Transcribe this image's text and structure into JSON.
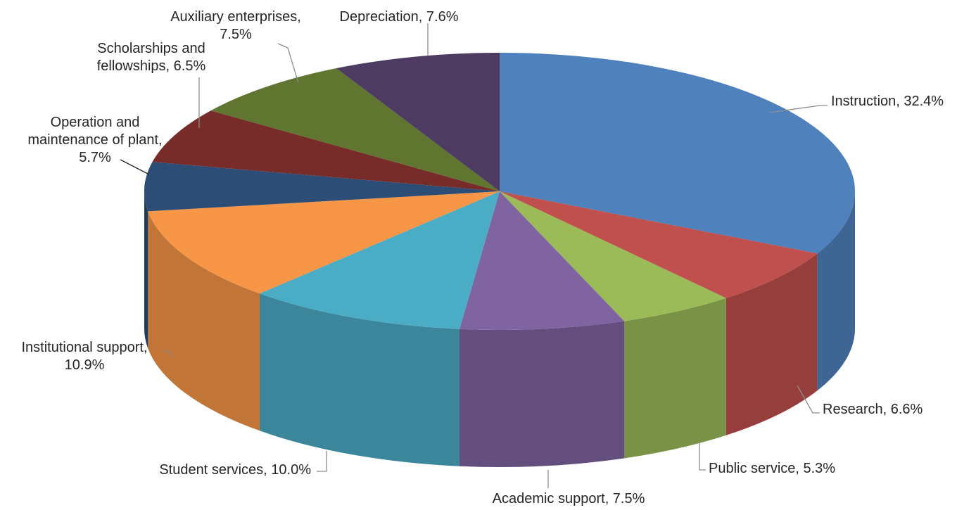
{
  "chart_data": {
    "type": "pie",
    "style": "3d",
    "slices": [
      {
        "label": "Instruction",
        "pct_text": "32.4%",
        "value": 32.4,
        "color": "#4F81BD"
      },
      {
        "label": "Research",
        "pct_text": "6.6%",
        "value": 6.6,
        "color": "#C0504D"
      },
      {
        "label": "Public service",
        "pct_text": "5.3%",
        "value": 5.3,
        "color": "#9BBB59"
      },
      {
        "label": "Academic support",
        "pct_text": "7.5%",
        "value": 7.5,
        "color": "#8064A2"
      },
      {
        "label": "Student services",
        "pct_text": "10.0%",
        "value": 10.0,
        "color": "#4BACC6"
      },
      {
        "label": "Institutional support",
        "pct_text": "10.9%",
        "value": 10.9,
        "color": "#F79646"
      },
      {
        "label": "Operation and maintenance of plant",
        "pct_text": "5.7%",
        "value": 5.7,
        "color": "#2C4D75"
      },
      {
        "label": "Scholarships and fellowships",
        "pct_text": "6.5%",
        "value": 6.5,
        "color": "#772C2A"
      },
      {
        "label": "Auxiliary enterprises",
        "pct_text": "7.5%",
        "value": 7.5,
        "color": "#5F7530"
      },
      {
        "label": "Depreciation",
        "pct_text": "7.6%",
        "value": 7.6,
        "color": "#4D3B62"
      }
    ],
    "legend": "none"
  },
  "data_labels": [
    {
      "lines": [
        "Instruction, 32.4%"
      ]
    },
    {
      "lines": [
        "Research, 6.6%"
      ]
    },
    {
      "lines": [
        "Public service, 5.3%"
      ]
    },
    {
      "lines": [
        "Academic support, 7.5%"
      ]
    },
    {
      "lines": [
        "Student services, 10.0%"
      ]
    },
    {
      "lines": [
        "Institutional support,",
        "10.9%"
      ]
    },
    {
      "lines": [
        "Operation and",
        "maintenance of plant,",
        "5.7%"
      ]
    },
    {
      "lines": [
        "Scholarships and",
        "fellowships, 6.5%"
      ]
    },
    {
      "lines": [
        "Auxiliary enterprises,",
        "7.5%"
      ]
    },
    {
      "lines": [
        "Depreciation, 7.6%"
      ]
    }
  ]
}
